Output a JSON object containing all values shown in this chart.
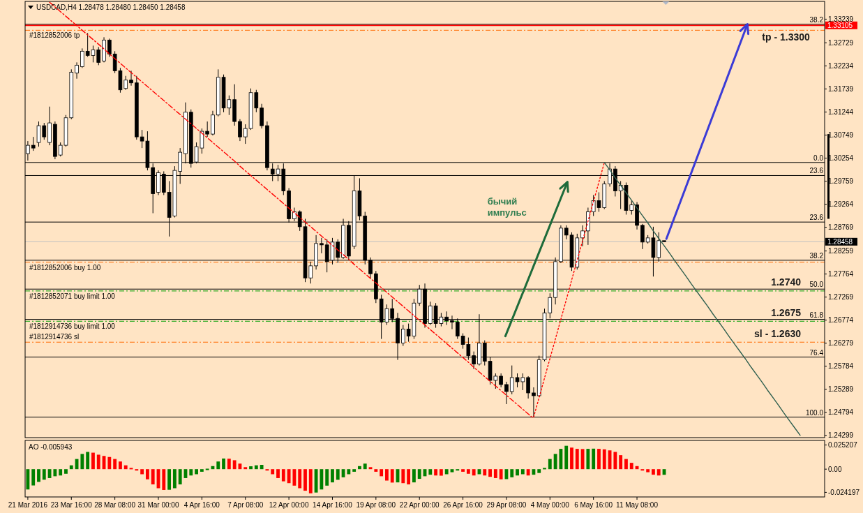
{
  "chart_data": [
    {
      "type": "candlestick",
      "title": "USDCAD,H4  1.28478 1.28480 1.28450 1.28458",
      "categories": [
        null,
        null,
        null,
        null,
        null,
        null,
        null,
        null,
        null,
        null,
        null,
        null,
        null,
        null,
        null,
        null,
        null,
        null,
        null,
        null,
        null,
        null,
        null,
        null,
        null,
        null,
        null,
        null,
        null,
        null,
        null,
        null,
        null,
        null,
        null,
        null,
        null,
        null,
        null,
        null,
        null,
        null,
        null,
        null,
        null,
        null,
        null,
        null,
        null,
        null,
        null,
        null,
        null,
        null,
        null,
        null,
        null,
        null,
        null,
        null,
        null,
        null,
        null,
        null,
        null,
        null,
        null,
        null,
        null,
        null,
        null,
        null,
        null,
        null,
        null,
        null,
        null,
        null,
        null,
        null,
        null,
        null,
        null,
        null,
        null,
        null,
        null,
        null,
        null,
        null,
        null,
        null,
        null,
        null,
        null,
        null,
        null,
        null,
        null,
        null,
        null,
        null,
        null,
        null,
        null,
        null,
        null,
        null,
        null,
        null,
        null,
        null,
        null,
        null,
        null,
        null,
        null,
        null,
        null,
        null,
        null,
        null,
        null,
        null,
        null,
        null,
        null,
        null,
        null,
        null,
        null,
        null,
        null,
        null,
        null,
        null,
        null,
        null,
        null,
        null,
        null,
        null,
        null,
        null,
        null,
        null,
        null
      ],
      "ohlc": [
        [
          1.3035,
          1.3062,
          1.302,
          1.3053
        ],
        [
          1.3053,
          1.3071,
          1.3041,
          1.3047
        ],
        [
          1.3059,
          1.3104,
          1.305,
          1.3095
        ],
        [
          1.3095,
          1.3101,
          1.3065,
          1.3071
        ],
        [
          1.3059,
          1.3136,
          1.3053,
          1.3101
        ],
        [
          1.3098,
          1.3104,
          1.3023,
          1.3029
        ],
        [
          1.3032,
          1.3059,
          1.3029,
          1.3053
        ],
        [
          1.3053,
          1.3118,
          1.305,
          1.3112
        ],
        [
          1.3112,
          1.3216,
          1.3109,
          1.321
        ],
        [
          1.3208,
          1.3231,
          1.3196,
          1.3225
        ],
        [
          1.3222,
          1.3261,
          1.3219,
          1.3255
        ],
        [
          1.3255,
          1.3294,
          1.3243,
          1.3246
        ],
        [
          1.3246,
          1.3267,
          1.3231,
          1.3258
        ],
        [
          1.3258,
          1.3264,
          1.3225,
          1.3231
        ],
        [
          1.3234,
          1.3285,
          1.3231,
          1.3279
        ],
        [
          1.3279,
          1.3282,
          1.3243,
          1.3249
        ],
        [
          1.3249,
          1.3255,
          1.3208,
          1.3213
        ],
        [
          1.3213,
          1.3219,
          1.3166,
          1.3172
        ],
        [
          1.3175,
          1.3202,
          1.3172,
          1.3193
        ],
        [
          1.3193,
          1.3213,
          1.3181,
          1.3187
        ],
        [
          1.3187,
          1.3202,
          1.3065,
          1.3071
        ],
        [
          1.3071,
          1.3086,
          1.3047,
          1.3062
        ],
        [
          1.3062,
          1.3083,
          1.2999,
          1.3005
        ],
        [
          1.3005,
          1.3014,
          1.2907,
          1.2949
        ],
        [
          1.2952,
          1.2999,
          1.2946,
          1.2994
        ],
        [
          1.2991,
          1.2997,
          1.2946,
          1.2952
        ],
        [
          1.2952,
          1.2976,
          1.2857,
          1.2898
        ],
        [
          1.2901,
          1.3008,
          1.2898,
          1.2999
        ],
        [
          1.2997,
          1.3047,
          1.297,
          1.3038
        ],
        [
          1.3035,
          1.3145,
          1.3014,
          1.3124
        ],
        [
          1.3124,
          1.313,
          1.3005,
          1.3014
        ],
        [
          1.3017,
          1.3059,
          1.3014,
          1.305
        ],
        [
          1.3047,
          1.3089,
          1.3035,
          1.3083
        ],
        [
          1.3083,
          1.3104,
          1.3071,
          1.3077
        ],
        [
          1.3077,
          1.3127,
          1.3074,
          1.3118
        ],
        [
          1.3118,
          1.3216,
          1.3115,
          1.3199
        ],
        [
          1.3199,
          1.3205,
          1.3124,
          1.3133
        ],
        [
          1.3133,
          1.316,
          1.3118,
          1.3151
        ],
        [
          1.3151,
          1.3184,
          1.3095,
          1.3104
        ],
        [
          1.3104,
          1.3109,
          1.3062,
          1.3071
        ],
        [
          1.3071,
          1.3098,
          1.3056,
          1.3089
        ],
        [
          1.3089,
          1.3175,
          1.3086,
          1.3166
        ],
        [
          1.3166,
          1.3172,
          1.3124,
          1.3133
        ],
        [
          1.3133,
          1.3142,
          1.3089,
          1.3095
        ],
        [
          1.3095,
          1.3104,
          1.2999,
          1.3005
        ],
        [
          1.3002,
          1.3014,
          1.2976,
          1.2991
        ],
        [
          1.2991,
          1.3011,
          1.2976,
          1.3002
        ],
        [
          1.3002,
          1.3014,
          1.2946,
          1.2955
        ],
        [
          1.2955,
          1.2961,
          1.2887,
          1.2895
        ],
        [
          1.2895,
          1.2919,
          1.289,
          1.291
        ],
        [
          1.291,
          1.2913,
          1.2869,
          1.2878
        ],
        [
          1.2878,
          1.2895,
          1.2759,
          1.2768
        ],
        [
          1.2768,
          1.2803,
          1.2756,
          1.2794
        ],
        [
          1.2794,
          1.286,
          1.2786,
          1.2842
        ],
        [
          1.2842,
          1.2854,
          1.2821,
          1.2839
        ],
        [
          1.2839,
          1.2851,
          1.278,
          1.2803
        ],
        [
          1.2806,
          1.2854,
          1.2797,
          1.2845
        ],
        [
          1.2845,
          1.2851,
          1.28,
          1.2812
        ],
        [
          1.2812,
          1.2895,
          1.2809,
          1.2881
        ],
        [
          1.2881,
          1.289,
          1.2806,
          1.2815
        ],
        [
          1.2836,
          1.2988,
          1.283,
          1.2955
        ],
        [
          1.2955,
          1.2982,
          1.2892,
          1.2901
        ],
        [
          1.2901,
          1.291,
          1.2797,
          1.2806
        ],
        [
          1.2806,
          1.2812,
          1.2768,
          1.2777
        ],
        [
          1.2777,
          1.2783,
          1.2714,
          1.2723
        ],
        [
          1.2723,
          1.2732,
          1.2637,
          1.2673
        ],
        [
          1.2673,
          1.2711,
          1.2667,
          1.2702
        ],
        [
          1.2702,
          1.2723,
          1.2673,
          1.2681
        ],
        [
          1.2681,
          1.2693,
          1.2592,
          1.2628
        ],
        [
          1.2628,
          1.2667,
          1.2622,
          1.2658
        ],
        [
          1.2658,
          1.267,
          1.2631,
          1.2643
        ],
        [
          1.2643,
          1.2723,
          1.2637,
          1.2714
        ],
        [
          1.2714,
          1.2753,
          1.2708,
          1.2744
        ],
        [
          1.2744,
          1.2756,
          1.2661,
          1.267
        ],
        [
          1.267,
          1.2717,
          1.2667,
          1.2708
        ],
        [
          1.2708,
          1.2714,
          1.2661,
          1.267
        ],
        [
          1.267,
          1.2693,
          1.2664,
          1.2684
        ],
        [
          1.2684,
          1.2696,
          1.2667,
          1.2676
        ],
        [
          1.2676,
          1.2687,
          1.2658,
          1.2673
        ],
        [
          1.2673,
          1.2681,
          1.2637,
          1.2643
        ],
        [
          1.2643,
          1.2649,
          1.2616,
          1.2625
        ],
        [
          1.2625,
          1.264,
          1.2592,
          1.2601
        ],
        [
          1.2601,
          1.261,
          1.2572,
          1.2583
        ],
        [
          1.2583,
          1.269,
          1.258,
          1.2628
        ],
        [
          1.2628,
          1.2634,
          1.258,
          1.2589
        ],
        [
          1.2589,
          1.2598,
          1.2539,
          1.2548
        ],
        [
          1.2548,
          1.2563,
          1.253,
          1.2557
        ],
        [
          1.2557,
          1.2563,
          1.2533,
          1.2539
        ],
        [
          1.2539,
          1.2545,
          1.2497,
          1.2524
        ],
        [
          1.2524,
          1.258,
          1.2518,
          1.2554
        ],
        [
          1.2554,
          1.2563,
          1.2533,
          1.2545
        ],
        [
          1.2545,
          1.2563,
          1.2527,
          1.2554
        ],
        [
          1.2554,
          1.2557,
          1.2509,
          1.2521
        ],
        [
          1.2521,
          1.2533,
          1.2469,
          1.2515
        ],
        [
          1.2515,
          1.2601,
          1.2512,
          1.2592
        ],
        [
          1.2592,
          1.2702,
          1.2589,
          1.2693
        ],
        [
          1.2693,
          1.2735,
          1.2681,
          1.2726
        ],
        [
          1.2726,
          1.2812,
          1.2711,
          1.2803
        ],
        [
          1.2803,
          1.2881,
          1.28,
          1.2875
        ],
        [
          1.2875,
          1.2881,
          1.2851,
          1.286
        ],
        [
          1.286,
          1.2866,
          1.2783,
          1.2791
        ],
        [
          1.2791,
          1.2863,
          1.2786,
          1.2854
        ],
        [
          1.2854,
          1.2881,
          1.2836,
          1.2869
        ],
        [
          1.2869,
          1.2919,
          1.2839,
          1.291
        ],
        [
          1.291,
          1.2946,
          1.2901,
          1.2934
        ],
        [
          1.2934,
          1.2952,
          1.291,
          1.2919
        ],
        [
          1.2919,
          1.2976,
          1.2916,
          1.297
        ],
        [
          1.297,
          1.3014,
          1.2964,
          1.3002
        ],
        [
          1.3002,
          1.3008,
          1.2943,
          1.2955
        ],
        [
          1.2955,
          1.2976,
          1.2916,
          1.2967
        ],
        [
          1.2967,
          1.2973,
          1.2904,
          1.2913
        ],
        [
          1.2913,
          1.2934,
          1.2904,
          1.2925
        ],
        [
          1.2925,
          1.2931,
          1.2872,
          1.2881
        ],
        [
          1.2881,
          1.2884,
          1.283,
          1.2845
        ],
        [
          1.2845,
          1.286,
          1.2842,
          1.2854
        ],
        [
          1.2854,
          1.2878,
          1.2771,
          1.2812
        ],
        [
          1.2812,
          1.2866,
          1.2803,
          1.2848
        ],
        [
          1.2848,
          1.2848,
          1.2845,
          1.2846
        ],
        null,
        null,
        null,
        null,
        null,
        null,
        null,
        null,
        null,
        null,
        null,
        null,
        null,
        null,
        null,
        null,
        null,
        null,
        null,
        null,
        null,
        null,
        null,
        null,
        null,
        null,
        null,
        null,
        null
      ],
      "series": [
        {
          "type": "line",
          "color": "#ff0000",
          "line_style": "dashed",
          "values": [
            null,
            null,
            null,
            null,
            1.336,
            1.335,
            1.334,
            1.333,
            1.332,
            1.331,
            1.33,
            1.329,
            1.328,
            1.327,
            1.326,
            1.3249,
            1.3239,
            1.3229,
            1.3219,
            1.3209,
            1.3199,
            1.3189,
            1.3179,
            1.3169,
            1.3159,
            1.3149,
            1.3139,
            1.3129,
            1.3119,
            1.3109,
            1.3099,
            1.3089,
            1.3079,
            1.3069,
            1.3059,
            1.3049,
            1.3039,
            1.3029,
            1.3019,
            1.3008,
            1.2998,
            1.2988,
            1.2978,
            1.2968,
            1.2958,
            1.2948,
            1.2938,
            1.2928,
            1.2918,
            1.2908,
            1.2898,
            1.2888,
            1.2878,
            1.2868,
            1.2858,
            1.2848,
            1.2838,
            1.2828,
            1.2818,
            1.2808,
            1.2797,
            1.2787,
            1.2777,
            1.2767,
            1.2757,
            1.2747,
            1.2737,
            1.2727,
            1.2717,
            1.2707,
            1.2697,
            1.2687,
            1.2677,
            1.2667,
            1.2657,
            1.2647,
            1.2637,
            1.2627,
            1.2617,
            1.2607,
            1.2597,
            1.2587,
            1.2576,
            1.2566,
            1.2556,
            1.2546,
            1.2536,
            1.2526,
            1.2516,
            1.2506,
            1.2496,
            1.2486,
            1.2476,
            1.2466,
            null,
            null,
            null,
            null,
            null,
            null,
            null,
            null,
            null,
            null,
            null,
            null,
            null,
            null,
            null,
            null,
            null,
            null,
            null,
            null,
            null,
            null,
            null,
            null,
            null,
            null,
            null,
            null,
            null,
            null,
            null,
            null,
            null,
            null,
            null,
            null,
            null,
            null,
            null,
            null,
            null,
            null,
            null,
            null,
            null,
            null,
            null,
            null,
            null,
            null,
            null,
            null,
            null
          ]
        },
        {
          "type": "line",
          "color": "#ff0000",
          "line_style": "dotted",
          "values": [
            null,
            null,
            null,
            null,
            null,
            null,
            null,
            null,
            null,
            null,
            null,
            null,
            null,
            null,
            null,
            null,
            null,
            null,
            null,
            null,
            null,
            null,
            null,
            null,
            null,
            null,
            null,
            null,
            null,
            null,
            null,
            null,
            null,
            null,
            null,
            null,
            null,
            null,
            null,
            null,
            null,
            null,
            null,
            null,
            null,
            null,
            null,
            null,
            null,
            null,
            null,
            null,
            null,
            null,
            null,
            null,
            null,
            null,
            null,
            null,
            null,
            null,
            null,
            null,
            null,
            null,
            null,
            null,
            null,
            null,
            null,
            null,
            null,
            null,
            null,
            null,
            null,
            null,
            null,
            null,
            null,
            null,
            null,
            null,
            null,
            null,
            null,
            null,
            null,
            null,
            null,
            null,
            null,
            1.2469,
            1.2511,
            1.2553,
            1.2595,
            1.2637,
            1.2679,
            1.2721,
            1.2764,
            1.2806,
            1.2848,
            1.289,
            1.2932,
            1.2974,
            1.3016,
            null,
            null,
            null,
            null,
            null,
            null,
            null,
            null,
            null,
            null,
            null,
            null,
            null,
            null,
            null,
            null,
            null,
            null,
            null,
            null,
            null,
            null,
            null,
            null,
            null,
            null,
            null,
            null,
            null,
            null,
            null,
            null,
            null,
            null,
            null,
            null,
            null,
            null,
            null,
            null
          ]
        },
        {
          "type": "line",
          "color": "#2f5f4f",
          "line_style": "solid",
          "values": [
            null,
            null,
            null,
            null,
            null,
            null,
            null,
            null,
            null,
            null,
            null,
            null,
            null,
            null,
            null,
            null,
            null,
            null,
            null,
            null,
            null,
            null,
            null,
            null,
            null,
            null,
            null,
            null,
            null,
            null,
            null,
            null,
            null,
            null,
            null,
            null,
            null,
            null,
            null,
            null,
            null,
            null,
            null,
            null,
            null,
            null,
            null,
            null,
            null,
            null,
            null,
            null,
            null,
            null,
            null,
            null,
            null,
            null,
            null,
            null,
            null,
            null,
            null,
            null,
            null,
            null,
            null,
            null,
            null,
            null,
            null,
            null,
            null,
            null,
            null,
            null,
            null,
            null,
            null,
            null,
            null,
            null,
            null,
            null,
            null,
            null,
            null,
            null,
            null,
            null,
            null,
            null,
            null,
            null,
            null,
            null,
            null,
            null,
            null,
            null,
            null,
            null,
            null,
            null,
            null,
            null,
            1.3016,
            1.3,
            1.2983,
            1.2967,
            1.2951,
            1.2935,
            1.2918,
            1.2902,
            1.2886,
            1.2869,
            1.2853,
            1.2837,
            1.2821,
            1.2804,
            1.2788,
            1.2772,
            1.2755,
            1.2739,
            1.2723,
            1.2707,
            1.269,
            1.2674,
            1.2658,
            1.2641,
            1.2625,
            1.2609,
            1.2593,
            1.2576,
            1.256,
            1.2544,
            1.2527,
            1.2511,
            1.2495,
            1.2478,
            1.2462,
            1.2446,
            1.243,
            null,
            null,
            null,
            null
          ]
        }
      ],
      "ylim": [
        1.2425,
        1.3362
      ],
      "yticks": [
        1.24299,
        1.24794,
        1.25289,
        1.25784,
        1.26279,
        1.26774,
        1.27269,
        1.27764,
        1.28259,
        1.28769,
        1.29264,
        1.29759,
        1.30254,
        1.30749,
        1.31244,
        1.31739,
        1.32234,
        1.32729,
        1.33239
      ],
      "tick_labels": "y",
      "ref_lines": [
        {
          "axis": "y",
          "value": 1.3313,
          "color": "#000000",
          "line_style": "solid"
        },
        {
          "axis": "y",
          "value": 1.33105,
          "label": "1.33105",
          "color": "#ff0000",
          "line_style": "solid"
        },
        {
          "axis": "y",
          "value": 1.33,
          "label": "#1812852006 tp",
          "color": "#ff6a00",
          "line_style": "dashed"
        },
        {
          "axis": "y",
          "value": 1.3016,
          "color": "#000000",
          "line_style": "solid"
        },
        {
          "axis": "y",
          "value": 1.2988,
          "color": "#000000",
          "line_style": "solid"
        },
        {
          "axis": "y",
          "value": 1.2888,
          "color": "#000000",
          "line_style": "solid"
        },
        {
          "axis": "y",
          "value": 1.28458,
          "label": "1.28458",
          "color": "#c0c0c0",
          "line_style": "solid"
        },
        {
          "axis": "y",
          "value": 1.2806,
          "color": "#000000",
          "line_style": "solid"
        },
        {
          "axis": "y",
          "value": 1.2802,
          "label": "#1812852006 buy 1.00",
          "color": "#ff6a00",
          "line_style": "dashed"
        },
        {
          "axis": "y",
          "value": 1.2744,
          "color": "#000000",
          "line_style": "solid"
        },
        {
          "axis": "y",
          "value": 1.274,
          "label": "#1812852071 buy limit 1.00",
          "color": "#00a000",
          "line_style": "dashed"
        },
        {
          "axis": "y",
          "value": 1.2679,
          "color": "#000000",
          "line_style": "solid"
        },
        {
          "axis": "y",
          "value": 1.2675,
          "label": "#1812914736 buy limit 1.00",
          "color": "#00a000",
          "line_style": "dashed"
        },
        {
          "axis": "y",
          "value": 1.263,
          "label": "#1812914736 sl",
          "color": "#ff6a00",
          "line_style": "dashed"
        },
        {
          "axis": "y",
          "value": 1.2598,
          "color": "#000000",
          "line_style": "solid"
        },
        {
          "axis": "y",
          "value": 1.2469,
          "color": "#000000",
          "line_style": "solid"
        }
      ],
      "annotations": [
        "бычий импульс",
        "tp - 1.3300",
        "1.2740",
        "1.2675",
        "sl - 1.2630",
        {
          "text": "38.2",
          "y": 1.3313
        },
        {
          "text": "0.0",
          "y": 1.3016
        },
        {
          "text": "23.6",
          "y": 1.2988
        },
        {
          "text": "23.6",
          "y": 1.2888
        },
        {
          "text": "38.2",
          "y": 1.2806
        },
        {
          "text": "50.0",
          "y": 1.2744
        },
        {
          "text": "61.8",
          "y": 1.2679
        },
        {
          "text": "76.4",
          "y": 1.2598
        },
        {
          "text": "100.0",
          "y": 1.2469
        }
      ]
    },
    {
      "type": "bar",
      "title": "AO -0.005943",
      "categories": [
        "21 Mar 2016",
        null,
        null,
        null,
        null,
        null,
        null,
        null,
        "23 Mar 16:00",
        null,
        null,
        null,
        null,
        null,
        null,
        null,
        "28 Mar 08:00",
        null,
        null,
        null,
        null,
        null,
        null,
        null,
        "31 Mar 00:00",
        null,
        null,
        null,
        null,
        null,
        null,
        null,
        "4 Apr 16:00",
        null,
        null,
        null,
        null,
        null,
        null,
        null,
        "7 Apr 08:00",
        null,
        null,
        null,
        null,
        null,
        null,
        null,
        "12 Apr 00:00",
        null,
        null,
        null,
        null,
        null,
        null,
        null,
        "14 Apr 16:00",
        null,
        null,
        null,
        null,
        null,
        null,
        null,
        "19 Apr 08:00",
        null,
        null,
        null,
        null,
        null,
        null,
        null,
        "22 Apr 00:00",
        null,
        null,
        null,
        null,
        null,
        null,
        null,
        "26 Apr 16:00",
        null,
        null,
        null,
        null,
        null,
        null,
        null,
        "29 Apr 08:00",
        null,
        null,
        null,
        null,
        null,
        null,
        null,
        "4 May 00:00",
        null,
        null,
        null,
        null,
        null,
        null,
        null,
        "6 May 16:00",
        null,
        null,
        null,
        null,
        null,
        null,
        null,
        "11 May 08:00",
        null,
        null,
        null,
        null,
        null,
        null,
        null,
        null,
        null,
        null,
        null,
        null,
        null,
        null,
        null,
        null,
        null,
        null,
        null,
        null,
        null,
        null,
        null,
        null,
        null,
        null,
        null,
        null,
        null,
        null,
        null,
        null,
        null,
        null
      ],
      "values": [
        -0.0212,
        -0.017,
        -0.0133,
        -0.011,
        -0.0093,
        -0.0074,
        -0.0066,
        -0.0048,
        0.004,
        0.0106,
        0.0159,
        0.018,
        0.0172,
        0.0151,
        0.0138,
        0.0127,
        0.0106,
        0.008,
        0.004,
        0.0013,
        -0.0013,
        -0.0053,
        -0.0106,
        -0.0159,
        -0.0199,
        -0.0217,
        -0.0215,
        -0.0199,
        -0.0159,
        -0.0093,
        -0.0066,
        -0.0053,
        -0.0027,
        0.0005,
        0.0032,
        0.008,
        0.0111,
        0.0109,
        0.0093,
        0.0058,
        0.0021,
        0.003,
        0.004,
        0.0045,
        -0.0005,
        -0.0053,
        -0.0093,
        -0.0127,
        -0.0146,
        -0.0172,
        -0.0199,
        -0.0225,
        -0.0252,
        -0.0244,
        -0.0212,
        -0.0172,
        -0.0138,
        -0.0111,
        -0.0085,
        -0.0053,
        -0.0027,
        0.0032,
        0.0058,
        0.0021,
        -0.0027,
        -0.0074,
        -0.0119,
        -0.014,
        -0.0138,
        -0.0146,
        -0.0159,
        -0.0138,
        -0.0101,
        -0.0074,
        -0.0058,
        -0.0066,
        -0.0068,
        -0.0053,
        -0.0032,
        -0.0013,
        -0.0027,
        -0.0048,
        -0.0066,
        -0.0053,
        -0.0066,
        -0.008,
        -0.0093,
        -0.0106,
        -0.0104,
        -0.0085,
        -0.0066,
        -0.0053,
        -0.0066,
        -0.0058,
        -0.004,
        0.0013,
        0.0106,
        0.0159,
        0.0212,
        0.0244,
        0.0225,
        0.0212,
        0.021,
        0.0212,
        0.0214,
        0.0212,
        0.0207,
        0.0196,
        0.018,
        0.0146,
        0.0106,
        0.0066,
        0.0032,
        -0.0005,
        -0.0032,
        -0.0058,
        -0.0066,
        -0.0059,
        null,
        null,
        null,
        null,
        null,
        null,
        null,
        null,
        null,
        null,
        null,
        null,
        null,
        null,
        null,
        null,
        null,
        null,
        null,
        null,
        null,
        null,
        null,
        null,
        null,
        null,
        null,
        null,
        null
      ],
      "colors": [
        "#008000",
        "#008000",
        "#008000",
        "#008000",
        "#008000",
        "#008000",
        "#008000",
        "#008000",
        "#008000",
        "#008000",
        "#008000",
        "#008000",
        "#ff0000",
        "#ff0000",
        "#ff0000",
        "#ff0000",
        "#ff0000",
        "#ff0000",
        "#ff0000",
        "#ff0000",
        "#ff0000",
        "#ff0000",
        "#ff0000",
        "#ff0000",
        "#ff0000",
        "#ff0000",
        "#008000",
        "#008000",
        "#008000",
        "#008000",
        "#008000",
        "#008000",
        "#008000",
        "#008000",
        "#008000",
        "#008000",
        "#008000",
        "#ff0000",
        "#ff0000",
        "#ff0000",
        "#ff0000",
        "#008000",
        "#008000",
        "#008000",
        "#ff0000",
        "#ff0000",
        "#ff0000",
        "#ff0000",
        "#ff0000",
        "#ff0000",
        "#ff0000",
        "#ff0000",
        "#ff0000",
        "#008000",
        "#008000",
        "#008000",
        "#008000",
        "#008000",
        "#008000",
        "#008000",
        "#008000",
        "#008000",
        "#008000",
        "#ff0000",
        "#ff0000",
        "#ff0000",
        "#ff0000",
        "#ff0000",
        "#008000",
        "#ff0000",
        "#ff0000",
        "#008000",
        "#008000",
        "#008000",
        "#008000",
        "#ff0000",
        "#ff0000",
        "#008000",
        "#008000",
        "#008000",
        "#ff0000",
        "#ff0000",
        "#ff0000",
        "#008000",
        "#ff0000",
        "#ff0000",
        "#ff0000",
        "#ff0000",
        "#008000",
        "#008000",
        "#008000",
        "#008000",
        "#ff0000",
        "#008000",
        "#008000",
        "#008000",
        "#008000",
        "#008000",
        "#008000",
        "#008000",
        "#ff0000",
        "#ff0000",
        "#ff0000",
        "#008000",
        "#008000",
        "#ff0000",
        "#ff0000",
        "#ff0000",
        "#ff0000",
        "#ff0000",
        "#ff0000",
        "#ff0000",
        "#ff0000",
        "#ff0000",
        "#ff0000",
        "#ff0000",
        "#ff0000",
        "#008000",
        null,
        null,
        null,
        null,
        null,
        null,
        null,
        null,
        null,
        null,
        null,
        null,
        null,
        null,
        null,
        null,
        null,
        null,
        null,
        null,
        null,
        null,
        null,
        null,
        null,
        null,
        null,
        null,
        null
      ],
      "ylim": [
        -0.029,
        0.03
      ],
      "yticks": [
        0.025207,
        {
          "value": 0,
          "label": "0.00"
        },
        -0.024197
      ]
    }
  ]
}
